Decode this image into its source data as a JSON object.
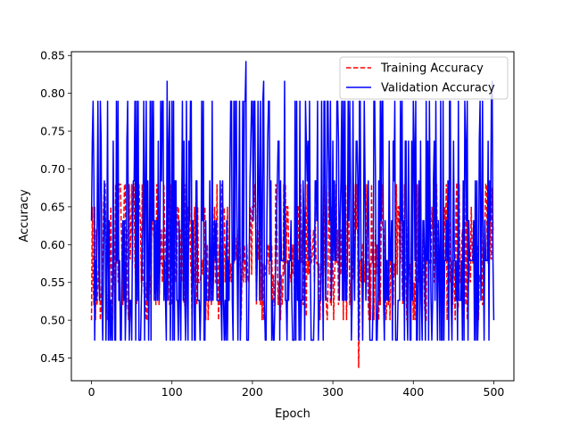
{
  "chart_data": {
    "type": "line",
    "title": "",
    "xlabel": "Epoch",
    "ylabel": "Accuracy",
    "xlim": [
      -25,
      525
    ],
    "ylim": [
      0.42,
      0.855
    ],
    "xticks": [
      0,
      100,
      200,
      300,
      400,
      500
    ],
    "yticks": [
      0.45,
      0.5,
      0.55,
      0.6,
      0.65,
      0.7,
      0.75,
      0.8,
      0.85
    ],
    "grid": false,
    "legend_position": "top-right",
    "series": [
      {
        "name": "Training Accuracy",
        "color": "#ff0000",
        "style": "dashed",
        "n_points": 501,
        "low_values": [
          0.5,
          0.52,
          0.55,
          0.56,
          0.575
        ],
        "high_values": [
          0.58,
          0.6,
          0.62,
          0.65,
          0.68
        ],
        "spikes": [
          {
            "x": 332,
            "y": 0.437
          },
          {
            "x": 130,
            "y": 0.682
          },
          {
            "x": 454,
            "y": 0.682
          },
          {
            "x": 498,
            "y": 0.675
          },
          {
            "x": 230,
            "y": 0.665
          },
          {
            "x": 455,
            "y": 0.51
          },
          {
            "x": 267,
            "y": 0.505
          }
        ]
      },
      {
        "name": "Validation Accuracy",
        "color": "#0000ff",
        "style": "solid",
        "n_points": 501,
        "levels": [
          0.4737,
          0.5263,
          0.5789,
          0.6316,
          0.6842,
          0.7368,
          0.7895
        ],
        "spikes": [
          {
            "x": 192,
            "y": 0.842
          },
          {
            "x": 1,
            "y": 0.737
          },
          {
            "x": 94,
            "y": 0.816
          },
          {
            "x": 214,
            "y": 0.816
          },
          {
            "x": 240,
            "y": 0.816
          },
          {
            "x": 498,
            "y": 0.816
          },
          {
            "x": 500,
            "y": 0.5
          }
        ]
      }
    ]
  }
}
